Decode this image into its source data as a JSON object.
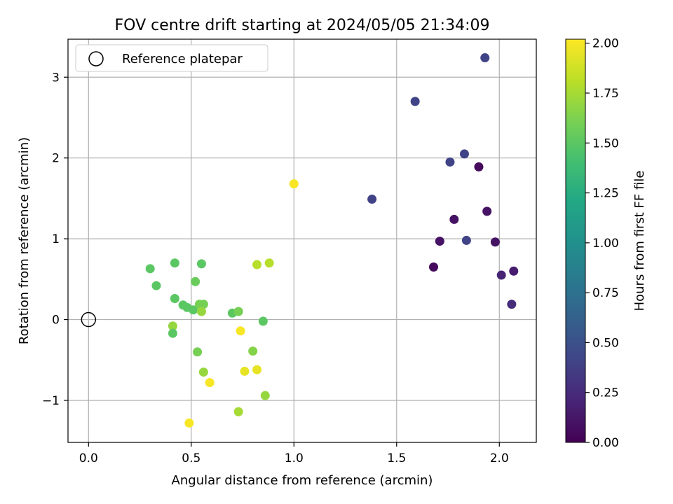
{
  "chart_data": {
    "type": "scatter",
    "title": "FOV centre drift starting at 2024/05/05 21:34:09",
    "xlabel": "Angular distance from reference (arcmin)",
    "ylabel": "Rotation from reference (arcmin)",
    "xlim": [
      -0.1,
      2.18
    ],
    "ylim": [
      -1.52,
      3.47
    ],
    "xticks": [
      0.0,
      0.5,
      1.0,
      1.5,
      2.0
    ],
    "xtick_labels": [
      "0.0",
      "0.5",
      "1.0",
      "1.5",
      "2.0"
    ],
    "yticks": [
      -1,
      0,
      1,
      2,
      3
    ],
    "ytick_labels": [
      "−1",
      "0",
      "1",
      "2",
      "3"
    ],
    "grid": true,
    "legend": {
      "position": "top-left",
      "entries": [
        "Reference platepar"
      ]
    },
    "reference_point": {
      "x": 0.0,
      "y": 0.0,
      "label": "Reference platepar"
    },
    "colorbar": {
      "label": "Hours from first FF file",
      "range": [
        0.0,
        2.02
      ],
      "ticks": [
        0.0,
        0.25,
        0.5,
        0.75,
        1.0,
        1.25,
        1.5,
        1.75,
        2.0
      ],
      "tick_labels": [
        "0.00",
        "0.25",
        "0.50",
        "0.75",
        "1.00",
        "1.25",
        "1.50",
        "1.75",
        "2.00"
      ],
      "colormap": "viridis"
    },
    "points": [
      {
        "x": 1.93,
        "y": 3.24,
        "hours": 0.4
      },
      {
        "x": 1.59,
        "y": 2.7,
        "hours": 0.4
      },
      {
        "x": 1.83,
        "y": 2.05,
        "hours": 0.4
      },
      {
        "x": 1.76,
        "y": 1.95,
        "hours": 0.4
      },
      {
        "x": 1.9,
        "y": 1.89,
        "hours": 0.05
      },
      {
        "x": 1.38,
        "y": 1.49,
        "hours": 0.4
      },
      {
        "x": 1.94,
        "y": 1.34,
        "hours": 0.1
      },
      {
        "x": 1.78,
        "y": 1.24,
        "hours": 0.1
      },
      {
        "x": 1.71,
        "y": 0.97,
        "hours": 0.1
      },
      {
        "x": 1.84,
        "y": 0.98,
        "hours": 0.4
      },
      {
        "x": 1.98,
        "y": 0.96,
        "hours": 0.1
      },
      {
        "x": 1.68,
        "y": 0.65,
        "hours": 0.05
      },
      {
        "x": 2.07,
        "y": 0.6,
        "hours": 0.15
      },
      {
        "x": 2.01,
        "y": 0.55,
        "hours": 0.2
      },
      {
        "x": 2.06,
        "y": 0.19,
        "hours": 0.25
      },
      {
        "x": 1.0,
        "y": 1.68,
        "hours": 2.0
      },
      {
        "x": 0.42,
        "y": 0.7,
        "hours": 1.5
      },
      {
        "x": 0.55,
        "y": 0.69,
        "hours": 1.5
      },
      {
        "x": 0.3,
        "y": 0.63,
        "hours": 1.5
      },
      {
        "x": 0.33,
        "y": 0.42,
        "hours": 1.5
      },
      {
        "x": 0.52,
        "y": 0.47,
        "hours": 1.55
      },
      {
        "x": 0.42,
        "y": 0.26,
        "hours": 1.5
      },
      {
        "x": 0.46,
        "y": 0.18,
        "hours": 1.5
      },
      {
        "x": 0.48,
        "y": 0.15,
        "hours": 1.5
      },
      {
        "x": 0.51,
        "y": 0.12,
        "hours": 1.5
      },
      {
        "x": 0.54,
        "y": 0.19,
        "hours": 1.6
      },
      {
        "x": 0.56,
        "y": 0.19,
        "hours": 1.6
      },
      {
        "x": 0.55,
        "y": 0.1,
        "hours": 1.7
      },
      {
        "x": 0.7,
        "y": 0.08,
        "hours": 1.5
      },
      {
        "x": 0.73,
        "y": 0.1,
        "hours": 1.6
      },
      {
        "x": 0.85,
        "y": -0.02,
        "hours": 1.5
      },
      {
        "x": 0.82,
        "y": 0.68,
        "hours": 1.8
      },
      {
        "x": 0.88,
        "y": 0.7,
        "hours": 1.8
      },
      {
        "x": 0.41,
        "y": -0.08,
        "hours": 1.7
      },
      {
        "x": 0.41,
        "y": -0.17,
        "hours": 1.5
      },
      {
        "x": 0.74,
        "y": -0.14,
        "hours": 2.0
      },
      {
        "x": 0.53,
        "y": -0.4,
        "hours": 1.6
      },
      {
        "x": 0.8,
        "y": -0.39,
        "hours": 1.65
      },
      {
        "x": 0.56,
        "y": -0.65,
        "hours": 1.7
      },
      {
        "x": 0.76,
        "y": -0.64,
        "hours": 1.95
      },
      {
        "x": 0.82,
        "y": -0.62,
        "hours": 1.95
      },
      {
        "x": 0.59,
        "y": -0.78,
        "hours": 2.0
      },
      {
        "x": 0.86,
        "y": -0.94,
        "hours": 1.7
      },
      {
        "x": 0.73,
        "y": -1.14,
        "hours": 1.75
      },
      {
        "x": 0.49,
        "y": -1.28,
        "hours": 2.0
      }
    ]
  }
}
